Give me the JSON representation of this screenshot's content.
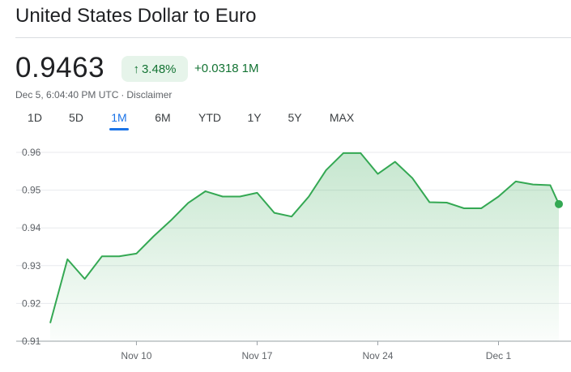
{
  "header": {
    "title": "United States Dollar to Euro"
  },
  "quote": {
    "price": "0.9463",
    "change_percent": "3.48%",
    "change_icon": "arrow-up-icon",
    "change_value": "+0.0318",
    "change_period": "1M",
    "timestamp": "Dec 5, 6:04:40 PM UTC",
    "disclaimer": "Disclaimer",
    "colors": {
      "positive": "#137333",
      "positive_bg": "#e6f4ea"
    }
  },
  "tabs": [
    {
      "label": "1D",
      "active": false
    },
    {
      "label": "5D",
      "active": false
    },
    {
      "label": "1M",
      "active": true
    },
    {
      "label": "6M",
      "active": false
    },
    {
      "label": "YTD",
      "active": false
    },
    {
      "label": "1Y",
      "active": false
    },
    {
      "label": "5Y",
      "active": false
    },
    {
      "label": "MAX",
      "active": false
    }
  ],
  "chart_data": {
    "type": "area",
    "title": "",
    "xlabel": "",
    "ylabel": "",
    "x_tick_labels": [
      "Nov 10",
      "Nov 17",
      "Nov 24",
      "Dec 1"
    ],
    "x_tick_positions": [
      7,
      14,
      21,
      28
    ],
    "y_ticks": [
      0.91,
      0.92,
      0.93,
      0.94,
      0.95,
      0.96
    ],
    "y_tick_labels": [
      "0.91",
      "0.92",
      "0.93",
      "0.94",
      "0.95",
      "0.96"
    ],
    "ylim": [
      0.91,
      0.96
    ],
    "xlim": [
      2,
      31.5
    ],
    "grid": true,
    "line_color": "#34a853",
    "series": [
      {
        "x": [
          2,
          3,
          4,
          5,
          6,
          7,
          8,
          9,
          10,
          11,
          12,
          13,
          14,
          15,
          16,
          17,
          18,
          19,
          20,
          21,
          22,
          23,
          24,
          25,
          26,
          27,
          28,
          29,
          30,
          31,
          31.5
        ],
        "values": [
          0.9148,
          0.9317,
          0.9265,
          0.9325,
          0.9325,
          0.9332,
          0.9378,
          0.942,
          0.9466,
          0.9497,
          0.9483,
          0.9483,
          0.9493,
          0.944,
          0.943,
          0.9483,
          0.9553,
          0.9598,
          0.9598,
          0.9543,
          0.9575,
          0.9532,
          0.9468,
          0.9467,
          0.9452,
          0.9452,
          0.9483,
          0.9523,
          0.9515,
          0.9513,
          0.9463
        ]
      }
    ]
  }
}
